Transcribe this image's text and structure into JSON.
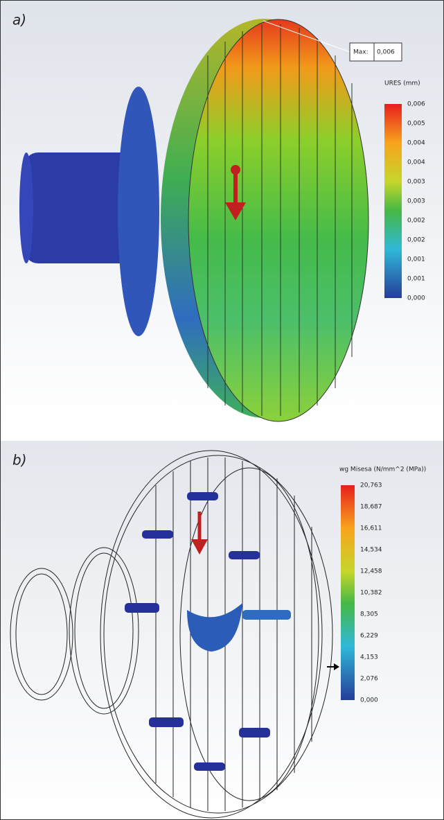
{
  "panel_a": {
    "label": "a)",
    "max_label": "Max:",
    "max_value": "0,006",
    "legend_title": "URES (mm)",
    "legend_labels": [
      "0,006",
      "0,005",
      "0,004",
      "0,004",
      "0,003",
      "0,003",
      "0,002",
      "0,002",
      "0,001",
      "0,001",
      "0,000"
    ]
  },
  "panel_b": {
    "label": "b)",
    "legend_title": "wg Misesa (N/mm^2 (MPa))",
    "legend_labels": [
      "20,763",
      "18,687",
      "16,611",
      "14,534",
      "12,458",
      "10,382",
      "8,305",
      "6,229",
      "4,153",
      "2,076",
      "0,000"
    ]
  }
}
